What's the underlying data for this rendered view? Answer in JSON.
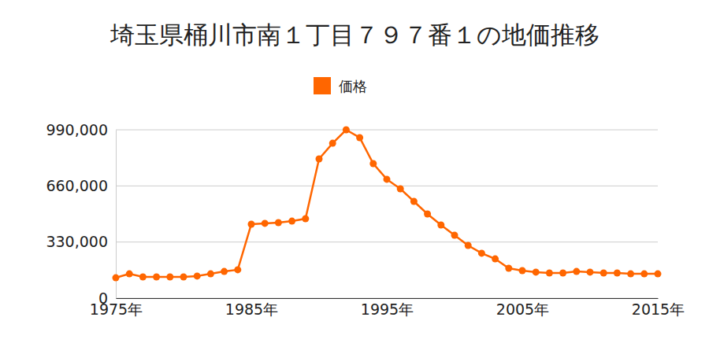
{
  "chart_data": {
    "type": "line",
    "title": "埼玉県桶川市南１丁目７９７番１の地価推移",
    "x": [
      1975,
      1976,
      1977,
      1978,
      1979,
      1980,
      1981,
      1982,
      1983,
      1984,
      1985,
      1986,
      1987,
      1988,
      1989,
      1990,
      1991,
      1992,
      1993,
      1994,
      1995,
      1996,
      1997,
      1998,
      1999,
      2000,
      2001,
      2002,
      2003,
      2004,
      2005,
      2006,
      2007,
      2008,
      2009,
      2010,
      2011,
      2012,
      2013,
      2014,
      2015
    ],
    "series": [
      {
        "name": "価格",
        "color": "#ff6600",
        "marker": "circle",
        "values": [
          120000,
          143000,
          125000,
          125000,
          125000,
          125000,
          130000,
          143000,
          157000,
          167000,
          435000,
          440000,
          444000,
          453000,
          467000,
          819000,
          911000,
          990000,
          944000,
          791000,
          699000,
          643000,
          569000,
          495000,
          430000,
          370000,
          310000,
          264000,
          231000,
          176000,
          162000,
          153000,
          148000,
          148000,
          157000,
          153000,
          148000,
          148000,
          143000,
          143000,
          143000
        ]
      }
    ],
    "xlim": [
      1975,
      2015
    ],
    "xticks": [
      {
        "value": 1975,
        "label": "1975年"
      },
      {
        "value": 1985,
        "label": "1985年"
      },
      {
        "value": 1995,
        "label": "1995年"
      },
      {
        "value": 2005,
        "label": "2005年"
      },
      {
        "value": 2015,
        "label": "2015年"
      }
    ],
    "ylim": [
      0,
      990000
    ],
    "yticks": [
      0,
      {
        "value": 330000,
        "label": "330,000"
      },
      {
        "value": 660000,
        "label": "660,000"
      },
      {
        "value": 990000,
        "label": "990,000"
      }
    ],
    "grid": true,
    "legend": "top"
  }
}
